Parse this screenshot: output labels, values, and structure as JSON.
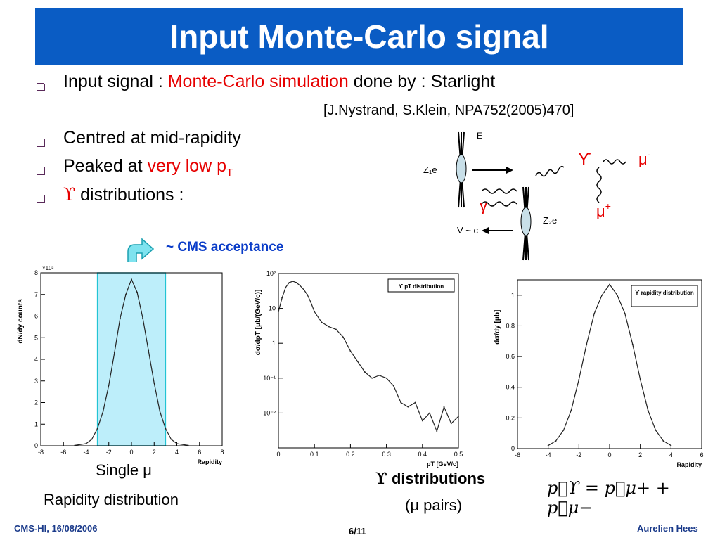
{
  "title": "Input Monte-Carlo signal",
  "bullets": {
    "b1_pre": "Input signal :",
    "b1_red": "Monte-Carlo simulation",
    "b1_post": "done by : Starlight",
    "ref": "[J.Nystrand, S.Klein, NPA752(2005)470]",
    "b2": "Centred at mid-rapidity",
    "b3_pre": "Peaked at",
    "b3_red": "very low p",
    "b3_sub": "T",
    "b4_sym": "ϒ",
    "b4_text": "distributions :"
  },
  "diagram": {
    "e": "E",
    "z1e": "Z₁e",
    "z2e": "Z₂e",
    "v": "V ~ c",
    "upsilon": "ϒ",
    "gamma": "γ",
    "mu_minus": "μ",
    "mu_minus_sup": "-",
    "mu_plus": "μ",
    "mu_plus_sup": "+"
  },
  "acceptance_label": "~ CMS acceptance",
  "captions": {
    "single": "Single μ",
    "rapidity": "Rapidity distribution",
    "ups_sym": "ϒ",
    "ups_dist": "distributions",
    "mu_pairs": "(μ pairs)",
    "formula": "p⃗ϒ = p⃗μ+ + p⃗μ−"
  },
  "footer": {
    "left": "CMS-HI, 16/08/2006",
    "center": "6/11",
    "right": "Aurelien Hees"
  },
  "chart_data": [
    {
      "type": "line",
      "xlabel": "Rapidity",
      "ylabel": "dN/dy counts",
      "y_multiplier": "×10³",
      "xlim": [
        -8,
        8
      ],
      "ylim": [
        0,
        8
      ],
      "xticks": [
        "-8",
        "-6",
        "-4",
        "-2",
        "0",
        "2",
        "4",
        "6",
        "8"
      ],
      "yticks": [
        "0",
        "1",
        "2",
        "3",
        "4",
        "5",
        "6",
        "7",
        "8"
      ],
      "acceptance_band": [
        -3,
        3
      ],
      "x": [
        -5,
        -4,
        -3.5,
        -3,
        -2.5,
        -2,
        -1.5,
        -1,
        -0.5,
        0,
        0.5,
        1,
        1.5,
        2,
        2.5,
        3,
        3.5,
        4,
        5
      ],
      "y": [
        0.02,
        0.1,
        0.3,
        0.8,
        1.6,
        2.8,
        4.3,
        5.9,
        7.0,
        7.7,
        7.1,
        5.9,
        4.4,
        2.9,
        1.6,
        0.8,
        0.3,
        0.1,
        0.02
      ]
    },
    {
      "type": "line",
      "title": "ϒ pT distribution",
      "xlabel": "pT [GeV/c]",
      "ylabel": "dσ/dpT [μb/(GeV/c)]",
      "xlim": [
        0,
        0.5
      ],
      "ylim": [
        0.001,
        100
      ],
      "log_y": true,
      "xticks": [
        "0",
        "0.1",
        "0.2",
        "0.3",
        "0.4",
        "0.5"
      ],
      "yticks": [
        "10⁻²",
        "10⁻¹",
        "1",
        "10",
        "10²"
      ],
      "x": [
        0.0,
        0.01,
        0.02,
        0.03,
        0.04,
        0.05,
        0.06,
        0.07,
        0.08,
        0.09,
        0.1,
        0.12,
        0.14,
        0.16,
        0.18,
        0.2,
        0.22,
        0.24,
        0.26,
        0.28,
        0.3,
        0.32,
        0.34,
        0.36,
        0.38,
        0.4,
        0.42,
        0.44,
        0.46,
        0.48,
        0.5
      ],
      "y": [
        8,
        20,
        40,
        55,
        60,
        55,
        45,
        35,
        25,
        15,
        8,
        4,
        3,
        2.5,
        1.5,
        0.6,
        0.3,
        0.15,
        0.1,
        0.12,
        0.1,
        0.06,
        0.02,
        0.015,
        0.02,
        0.006,
        0.01,
        0.003,
        0.015,
        0.005,
        0.008
      ]
    },
    {
      "type": "line",
      "title": "ϒ rapidity distribution",
      "xlabel": "Rapidity",
      "ylabel": "dσ/dy [μb]",
      "xlim": [
        -6,
        6
      ],
      "ylim": [
        0,
        1.1
      ],
      "xticks": [
        "-6",
        "-4",
        "-2",
        "0",
        "2",
        "4",
        "6"
      ],
      "yticks": [
        "0",
        "0.2",
        "0.4",
        "0.6",
        "0.8",
        "1"
      ],
      "x": [
        -4,
        -3.5,
        -3,
        -2.5,
        -2,
        -1.5,
        -1,
        -0.5,
        0,
        0.5,
        1,
        1.5,
        2,
        2.5,
        3,
        3.5,
        4
      ],
      "y": [
        0.02,
        0.05,
        0.12,
        0.25,
        0.45,
        0.68,
        0.88,
        1.0,
        1.07,
        1.0,
        0.88,
        0.68,
        0.45,
        0.25,
        0.12,
        0.05,
        0.02
      ]
    }
  ]
}
